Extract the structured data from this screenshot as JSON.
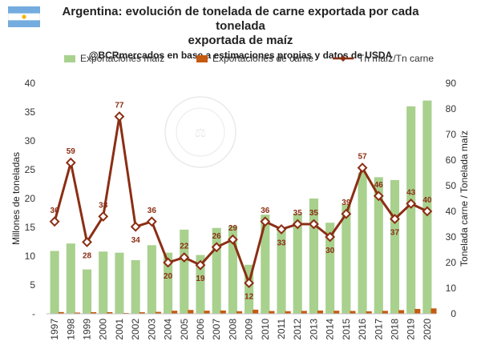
{
  "header": {
    "title_line1": "Argentina: evolución de tonelada de carne exportada por cada tonelada",
    "title_line2": "exportada de maíz",
    "subtitle": "@BCRmercados en base a estimaciones propias y datos de USDA"
  },
  "flag": {
    "icon": "argentina-flag-icon",
    "stripe_color": "#74acdf",
    "sun_color": "#f6b40e"
  },
  "watermark": "BOLSA DE COMERCIO DE ROSARIO",
  "chart_data": {
    "type": "bar",
    "categories": [
      "1997",
      "1998",
      "1999",
      "2000",
      "2001",
      "2002",
      "2003",
      "2004",
      "2005",
      "2006",
      "2007",
      "2008",
      "2009",
      "2010",
      "2011",
      "2012",
      "2013",
      "2014",
      "2015",
      "2016",
      "2017",
      "2018",
      "2019",
      "2020"
    ],
    "ylabel": "Millones de toneladas",
    "y2label": "Tonelada carne / Tonelada maíz",
    "ylim": [
      0,
      40
    ],
    "yticks": [
      "-",
      "5",
      "10",
      "15",
      "20",
      "25",
      "30",
      "35",
      "40"
    ],
    "y2lim": [
      0,
      90
    ],
    "y2ticks": [
      "0",
      "10",
      "20",
      "30",
      "40",
      "50",
      "60",
      "70",
      "80",
      "90"
    ],
    "grid": false,
    "legend_position": "top",
    "series": [
      {
        "name": "Exportaciones maíz",
        "kind": "bar",
        "color": "#a9d18e",
        "values": [
          10.9,
          12.2,
          7.7,
          10.8,
          10.6,
          9.3,
          11.9,
          10.6,
          14.6,
          10.2,
          14.9,
          15.2,
          8.5,
          17.2,
          15.0,
          17.4,
          20.0,
          15.8,
          19.0,
          24.5,
          23.7,
          23.2,
          36.0,
          37.0
        ]
      },
      {
        "name": "Exportaciones de carne",
        "kind": "bar",
        "color": "#c55a11",
        "values": [
          0.3,
          0.21,
          0.28,
          0.28,
          0.14,
          0.27,
          0.33,
          0.53,
          0.66,
          0.54,
          0.57,
          0.44,
          0.71,
          0.48,
          0.45,
          0.5,
          0.56,
          0.53,
          0.49,
          0.43,
          0.51,
          0.63,
          0.84,
          0.93
        ]
      },
      {
        "name": "Tn maíz/Tn carne",
        "kind": "line",
        "axis": "right",
        "color": "#8b2e14",
        "values": [
          36,
          59,
          28,
          38,
          77,
          34,
          36,
          20,
          22,
          19,
          26,
          29,
          12,
          36,
          33,
          35,
          35,
          30,
          39,
          57,
          46,
          37,
          43,
          40
        ],
        "labels": [
          "36",
          "59",
          "28",
          "38",
          "77",
          "34",
          "36",
          "20",
          "22",
          "19",
          "26",
          "29",
          "12",
          "36",
          "33",
          "35",
          "35",
          "30",
          "39",
          "57",
          "46",
          "37",
          "43",
          "40"
        ]
      }
    ]
  }
}
